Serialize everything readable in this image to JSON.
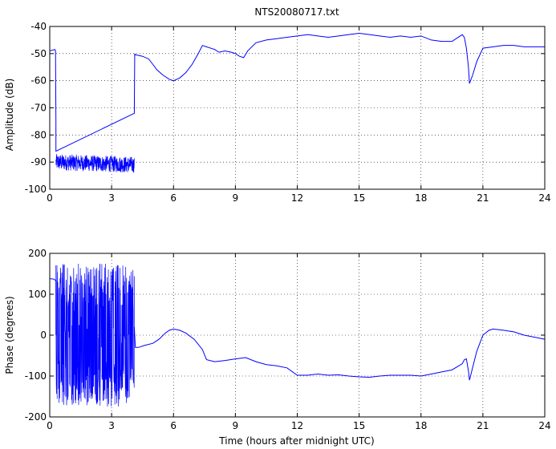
{
  "chart_data": [
    {
      "type": "line",
      "title": "NTS20080717.txt",
      "xlabel": "",
      "ylabel": "Amplitude (dB)",
      "xlim": [
        0,
        24
      ],
      "ylim": [
        -100,
        -40
      ],
      "xticks": [
        "0",
        "3",
        "6",
        "9",
        "12",
        "15",
        "18",
        "21",
        "24"
      ],
      "yticks": [
        "-100",
        "-90",
        "-80",
        "-70",
        "-60",
        "-50",
        "-40"
      ],
      "grid": true,
      "line_color": "#0000ff",
      "noise_segments": [
        {
          "x_start": 0.3,
          "x_end": 4.1,
          "center": -90,
          "spread": 3
        }
      ],
      "series": [
        {
          "x": [
            0,
            0.25,
            0.28,
            0.3,
            0.3,
            0.33,
            0.4,
            0.5,
            0.9,
            1.5,
            2.0,
            2.5,
            3.0,
            3.5,
            4.0,
            4.08,
            4.1,
            4.12,
            4.15,
            4.2,
            4.5,
            4.8,
            5.0,
            5.2,
            5.5,
            5.8,
            6.0,
            6.3,
            6.6,
            6.9,
            7.2,
            7.4,
            7.6,
            7.8,
            8.0,
            8.2,
            8.5,
            8.8,
            9.0,
            9.2,
            9.4,
            9.6,
            10.0,
            10.5,
            11.0,
            11.5,
            12.0,
            12.5,
            13.0,
            13.5,
            14.0,
            14.5,
            15.0,
            15.5,
            16.0,
            16.5,
            17.0,
            17.5,
            18.0,
            18.5,
            19.0,
            19.5,
            19.8,
            20.0,
            20.1,
            20.2,
            20.3,
            20.35,
            20.5,
            20.7,
            21.0,
            21.5,
            22.0,
            22.5,
            23.0,
            23.5,
            24.0
          ],
          "y": [
            -49,
            -48.5,
            -49,
            -75,
            -86,
            -88,
            -87.5,
            -88,
            -88.5,
            -89.5,
            -90,
            -90.5,
            -91,
            -91.5,
            -92,
            -90,
            -72,
            -50,
            -50.5,
            -50.5,
            -51,
            -52,
            -54,
            -56,
            -58,
            -59.5,
            -60,
            -59,
            -57,
            -54,
            -50,
            -47,
            -47.5,
            -48,
            -48.5,
            -49.5,
            -49,
            -49.5,
            -50,
            -51,
            -51.5,
            -49,
            -46,
            -45,
            -44.5,
            -44,
            -43.5,
            -43,
            -43.5,
            -44,
            -43.5,
            -43,
            -42.5,
            -43,
            -43.5,
            -44,
            -43.5,
            -44,
            -43.5,
            -45,
            -45.5,
            -45.5,
            -44,
            -43,
            -44,
            -48,
            -55,
            -61,
            -58,
            -53,
            -48,
            -47.5,
            -47,
            -47,
            -47.5,
            -47.5,
            -47.5
          ]
        }
      ]
    },
    {
      "type": "line",
      "title": "",
      "xlabel": "Time (hours after midnight UTC)",
      "ylabel": "Phase (degrees)",
      "xlim": [
        0,
        24
      ],
      "ylim": [
        -200,
        200
      ],
      "xticks": [
        "0",
        "3",
        "6",
        "9",
        "12",
        "15",
        "18",
        "21",
        "24"
      ],
      "yticks": [
        "-200",
        "-100",
        "0",
        "100",
        "200"
      ],
      "grid": true,
      "line_color": "#0000ff",
      "noise_segments": [
        {
          "x_start": 0.3,
          "x_end": 4.1,
          "center": 0,
          "spread": 175
        }
      ],
      "series": [
        {
          "x": [
            0,
            0.2,
            0.3,
            0.3,
            4.1,
            4.15,
            4.3,
            4.6,
            5.0,
            5.3,
            5.6,
            5.8,
            6.0,
            6.3,
            6.6,
            7.0,
            7.4,
            7.6,
            8.0,
            8.5,
            9.0,
            9.5,
            10.0,
            10.5,
            11.0,
            11.5,
            12.0,
            12.5,
            13.0,
            13.5,
            14.0,
            14.5,
            15.0,
            15.5,
            16.0,
            16.5,
            17.0,
            17.5,
            18.0,
            18.5,
            19.0,
            19.5,
            20.0,
            20.1,
            20.2,
            20.3,
            20.35,
            20.5,
            20.7,
            21.0,
            21.3,
            21.5,
            22.0,
            22.5,
            23.0,
            23.5,
            24.0
          ],
          "y": [
            138,
            137,
            133,
            0,
            20,
            -30,
            -30,
            -25,
            -20,
            -10,
            5,
            12,
            15,
            12,
            5,
            -10,
            -35,
            -60,
            -65,
            -62,
            -58,
            -55,
            -65,
            -72,
            -75,
            -80,
            -98,
            -98,
            -95,
            -98,
            -97,
            -100,
            -102,
            -103,
            -100,
            -98,
            -98,
            -98,
            -100,
            -95,
            -90,
            -85,
            -70,
            -60,
            -58,
            -88,
            -110,
            -80,
            -40,
            0,
            12,
            15,
            12,
            8,
            0,
            -5,
            -10
          ]
        }
      ]
    }
  ]
}
